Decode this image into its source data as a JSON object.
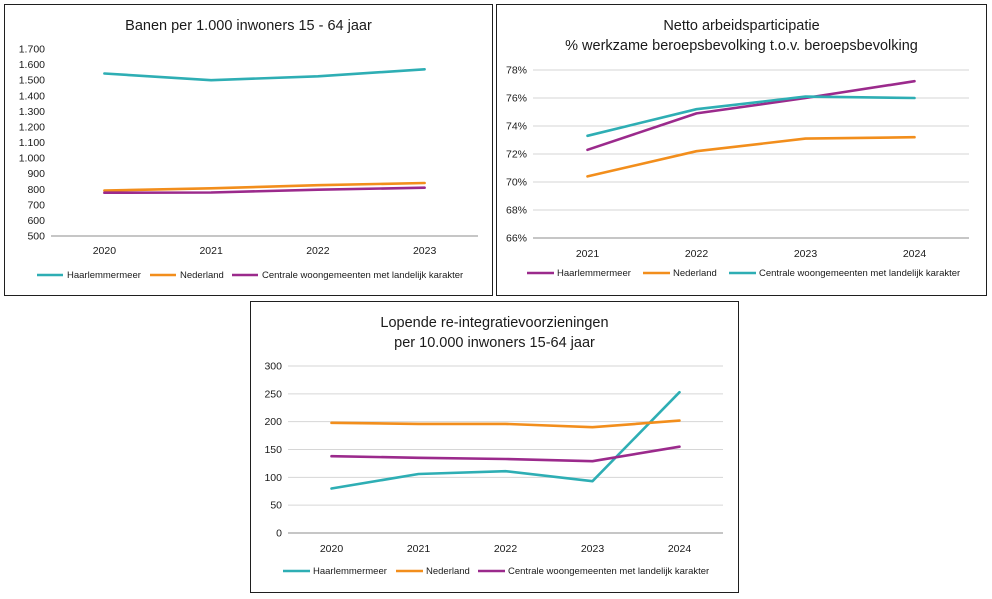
{
  "colors": {
    "haarlemmermeer": "#2eaeb4",
    "nederland": "#f28e1c",
    "centrale": "#9b2a8c"
  },
  "chart_data": [
    {
      "type": "line",
      "title_lines": [
        "Banen per 1.000 inwoners 15 - 64 jaar"
      ],
      "categories": [
        "2020",
        "2021",
        "2022",
        "2023"
      ],
      "ylim": [
        500,
        1700
      ],
      "yticks": [
        500,
        600,
        700,
        800,
        900,
        1000,
        1100,
        1200,
        1300,
        1400,
        1500,
        1600,
        1700
      ],
      "ytick_labels": [
        "500",
        "600",
        "700",
        "800",
        "900",
        "1.000",
        "1.100",
        "1.200",
        "1.300",
        "1.400",
        "1.500",
        "1.600",
        "1.700"
      ],
      "grid": false,
      "legend": "bottom",
      "series": [
        {
          "name": "Haarlemmermeer",
          "color_key": "haarlemmermeer",
          "values": [
            1543,
            1500,
            1525,
            1570
          ]
        },
        {
          "name": "Nederland",
          "color_key": "nederland",
          "values": [
            792,
            806,
            826,
            840
          ]
        },
        {
          "name": "Centrale woongemeenten met landelijk karakter",
          "color_key": "centrale",
          "values": [
            778,
            779,
            797,
            810
          ]
        }
      ]
    },
    {
      "type": "line",
      "title_lines": [
        "Netto arbeidsparticipatie",
        "% werkzame beroepsbevolking  t.o.v. beroepsbevolking"
      ],
      "categories": [
        "2021",
        "2022",
        "2023",
        "2024"
      ],
      "ylim": [
        66,
        78
      ],
      "yticks": [
        66,
        68,
        70,
        72,
        74,
        76,
        78
      ],
      "ytick_labels": [
        "66%",
        "68%",
        "70%",
        "72%",
        "74%",
        "76%",
        "78%"
      ],
      "grid": true,
      "legend": "bottom",
      "series": [
        {
          "name": "Haarlemmermeer",
          "color_key": "centrale",
          "values": [
            72.3,
            74.9,
            76.0,
            77.2
          ]
        },
        {
          "name": "Nederland",
          "color_key": "nederland",
          "values": [
            70.4,
            72.2,
            73.1,
            73.2
          ]
        },
        {
          "name": "Centrale woongemeenten met landelijk karakter",
          "color_key": "haarlemmermeer",
          "values": [
            73.3,
            75.2,
            76.1,
            76.0
          ]
        }
      ]
    },
    {
      "type": "line",
      "title_lines": [
        "Lopende re-integratievoorzieningen",
        "per 10.000 inwoners 15-64 jaar"
      ],
      "categories": [
        "2020",
        "2021",
        "2022",
        "2023",
        "2024"
      ],
      "ylim": [
        0,
        300
      ],
      "yticks": [
        0,
        50,
        100,
        150,
        200,
        250,
        300
      ],
      "ytick_labels": [
        "0",
        "50",
        "100",
        "150",
        "200",
        "250",
        "300"
      ],
      "grid": true,
      "legend": "bottom",
      "series": [
        {
          "name": "Haarlemmermeer",
          "color_key": "haarlemmermeer",
          "values": [
            80,
            106,
            111,
            93,
            253
          ]
        },
        {
          "name": "Nederland",
          "color_key": "nederland",
          "values": [
            198,
            196,
            196,
            190,
            202
          ]
        },
        {
          "name": "Centrale woongemeenten met landelijk karakter",
          "color_key": "centrale",
          "values": [
            138,
            135,
            133,
            129,
            155
          ]
        }
      ]
    }
  ]
}
